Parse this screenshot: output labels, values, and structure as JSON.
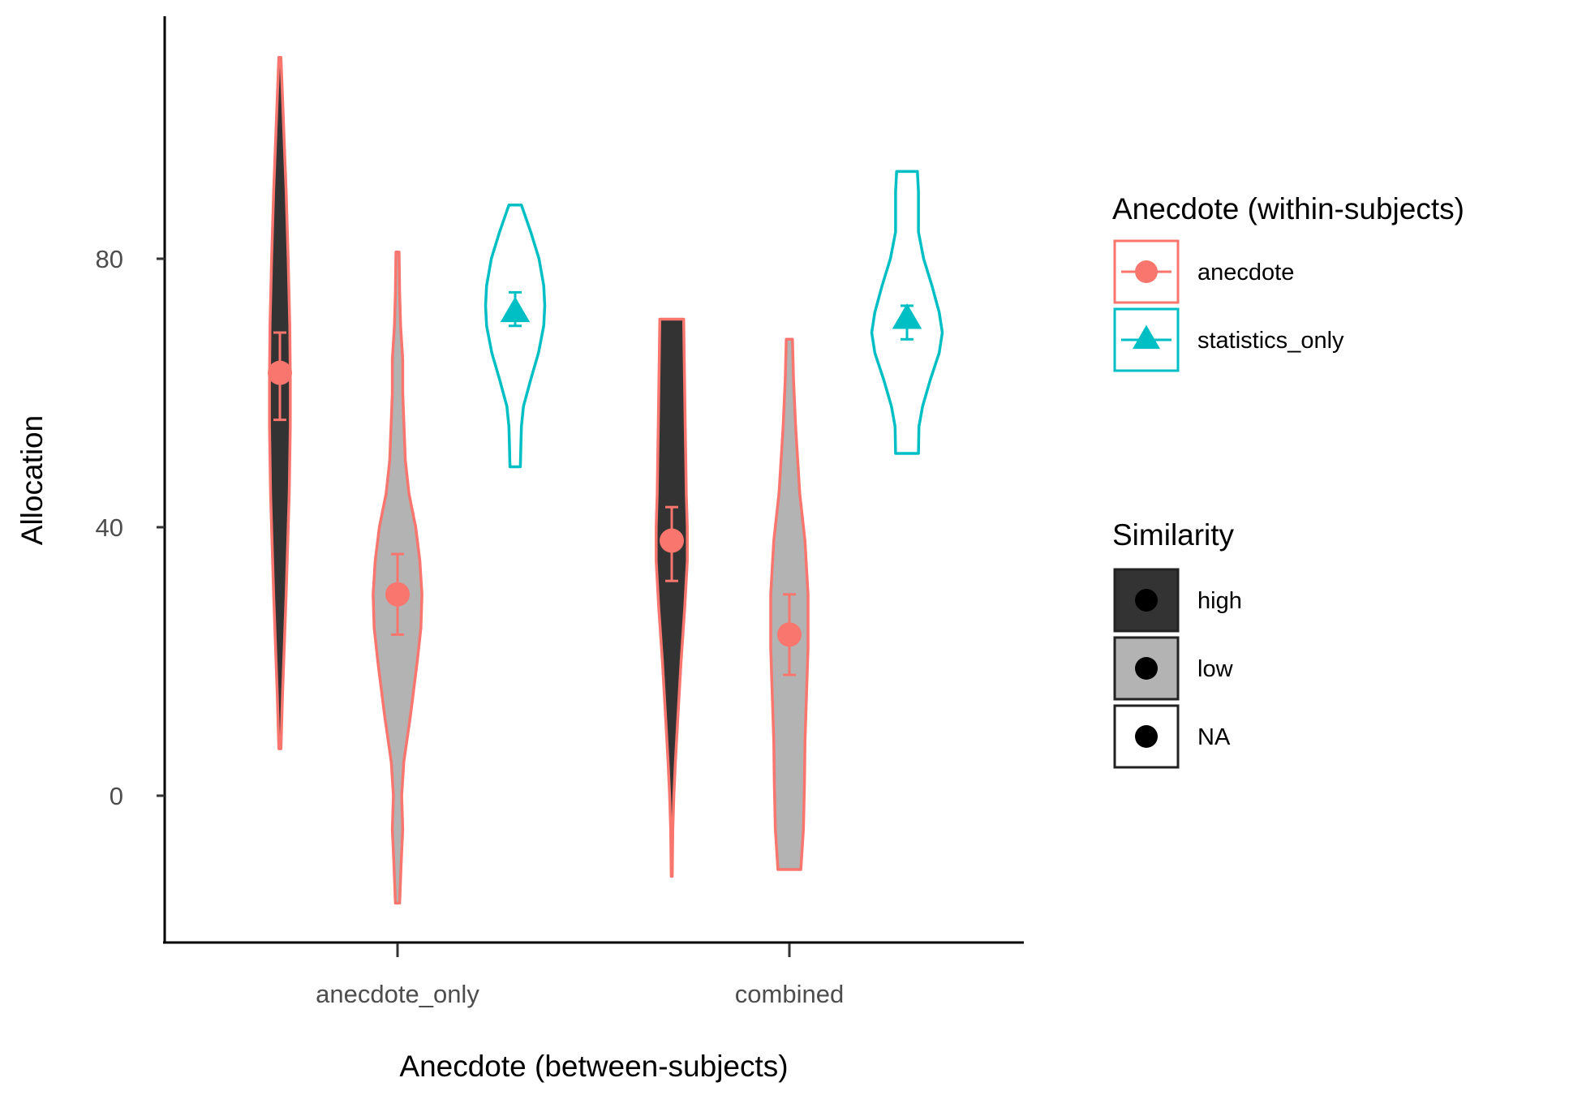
{
  "chart_data": {
    "type": "violin",
    "xlabel": "Anecdote (between-subjects)",
    "ylabel": "Allocation",
    "ylim": [
      -22,
      116
    ],
    "yticks": [
      0,
      40,
      80
    ],
    "categories": [
      "anecdote_only",
      "combined"
    ],
    "legend": {
      "color": {
        "title": "Anecdote (within-subjects)",
        "items": [
          {
            "label": "anecdote",
            "color": "#F8766D",
            "shape": "circle"
          },
          {
            "label": "statistics_only",
            "color": "#00BFC4",
            "shape": "triangle"
          }
        ]
      },
      "fill": {
        "title": "Similarity",
        "items": [
          {
            "label": "high",
            "fill": "#333333"
          },
          {
            "label": "low",
            "fill": "#B3B3B3"
          },
          {
            "label": "NA",
            "fill": "#FFFFFF"
          }
        ]
      },
      "position": "right"
    },
    "violins": [
      {
        "category": "anecdote_only",
        "group": "anecdote",
        "similarity": "high",
        "offset": -1,
        "profile": [
          [
            7,
            0.02
          ],
          [
            15,
            0.05
          ],
          [
            30,
            0.12
          ],
          [
            45,
            0.18
          ],
          [
            55,
            0.2
          ],
          [
            62,
            0.2
          ],
          [
            70,
            0.19
          ],
          [
            80,
            0.16
          ],
          [
            90,
            0.12
          ],
          [
            100,
            0.07
          ],
          [
            110,
            0.02
          ]
        ],
        "mean": 63,
        "ci": [
          56,
          69
        ]
      },
      {
        "category": "anecdote_only",
        "group": "anecdote",
        "similarity": "low",
        "offset": 0,
        "profile": [
          [
            -16,
            0.04
          ],
          [
            -10,
            0.07
          ],
          [
            -5,
            0.1
          ],
          [
            0,
            0.08
          ],
          [
            5,
            0.12
          ],
          [
            12,
            0.25
          ],
          [
            20,
            0.38
          ],
          [
            25,
            0.45
          ],
          [
            30,
            0.47
          ],
          [
            35,
            0.43
          ],
          [
            40,
            0.35
          ],
          [
            45,
            0.22
          ],
          [
            50,
            0.15
          ],
          [
            60,
            0.1
          ],
          [
            65,
            0.1
          ],
          [
            70,
            0.06
          ],
          [
            75,
            0.04
          ],
          [
            81,
            0.03
          ]
        ],
        "mean": 30,
        "ci": [
          24,
          36
        ]
      },
      {
        "category": "anecdote_only",
        "group": "statistics_only",
        "similarity": "NA",
        "offset": 1,
        "profile": [
          [
            49,
            0.1
          ],
          [
            52,
            0.11
          ],
          [
            55,
            0.12
          ],
          [
            58,
            0.16
          ],
          [
            62,
            0.3
          ],
          [
            66,
            0.45
          ],
          [
            70,
            0.55
          ],
          [
            73,
            0.57
          ],
          [
            76,
            0.55
          ],
          [
            80,
            0.46
          ],
          [
            84,
            0.3
          ],
          [
            88,
            0.12
          ]
        ],
        "mean": 72,
        "ci": [
          70,
          75
        ]
      },
      {
        "category": "combined",
        "group": "anecdote",
        "similarity": "high",
        "offset": -1,
        "profile": [
          [
            -12,
            0.01
          ],
          [
            -5,
            0.02
          ],
          [
            0,
            0.04
          ],
          [
            5,
            0.07
          ],
          [
            12,
            0.12
          ],
          [
            20,
            0.18
          ],
          [
            28,
            0.25
          ],
          [
            35,
            0.3
          ],
          [
            40,
            0.3
          ],
          [
            45,
            0.28
          ],
          [
            50,
            0.27
          ],
          [
            55,
            0.26
          ],
          [
            65,
            0.24
          ],
          [
            71,
            0.23
          ]
        ],
        "mean": 38,
        "ci": [
          32,
          43
        ]
      },
      {
        "category": "combined",
        "group": "anecdote",
        "similarity": "low",
        "offset": 0,
        "profile": [
          [
            -11,
            0.22
          ],
          [
            -5,
            0.27
          ],
          [
            2,
            0.29
          ],
          [
            8,
            0.3
          ],
          [
            15,
            0.33
          ],
          [
            22,
            0.36
          ],
          [
            30,
            0.36
          ],
          [
            38,
            0.3
          ],
          [
            45,
            0.2
          ],
          [
            55,
            0.12
          ],
          [
            62,
            0.08
          ],
          [
            68,
            0.06
          ]
        ],
        "mean": 24,
        "ci": [
          18,
          30
        ]
      },
      {
        "category": "combined",
        "group": "statistics_only",
        "similarity": "NA",
        "offset": 1,
        "profile": [
          [
            51,
            0.22
          ],
          [
            55,
            0.23
          ],
          [
            58,
            0.3
          ],
          [
            62,
            0.45
          ],
          [
            66,
            0.62
          ],
          [
            69,
            0.68
          ],
          [
            72,
            0.62
          ],
          [
            76,
            0.48
          ],
          [
            80,
            0.32
          ],
          [
            84,
            0.22
          ],
          [
            88,
            0.22
          ],
          [
            90,
            0.22
          ],
          [
            93,
            0.2
          ]
        ],
        "mean": 71,
        "ci": [
          68,
          73
        ]
      }
    ]
  }
}
